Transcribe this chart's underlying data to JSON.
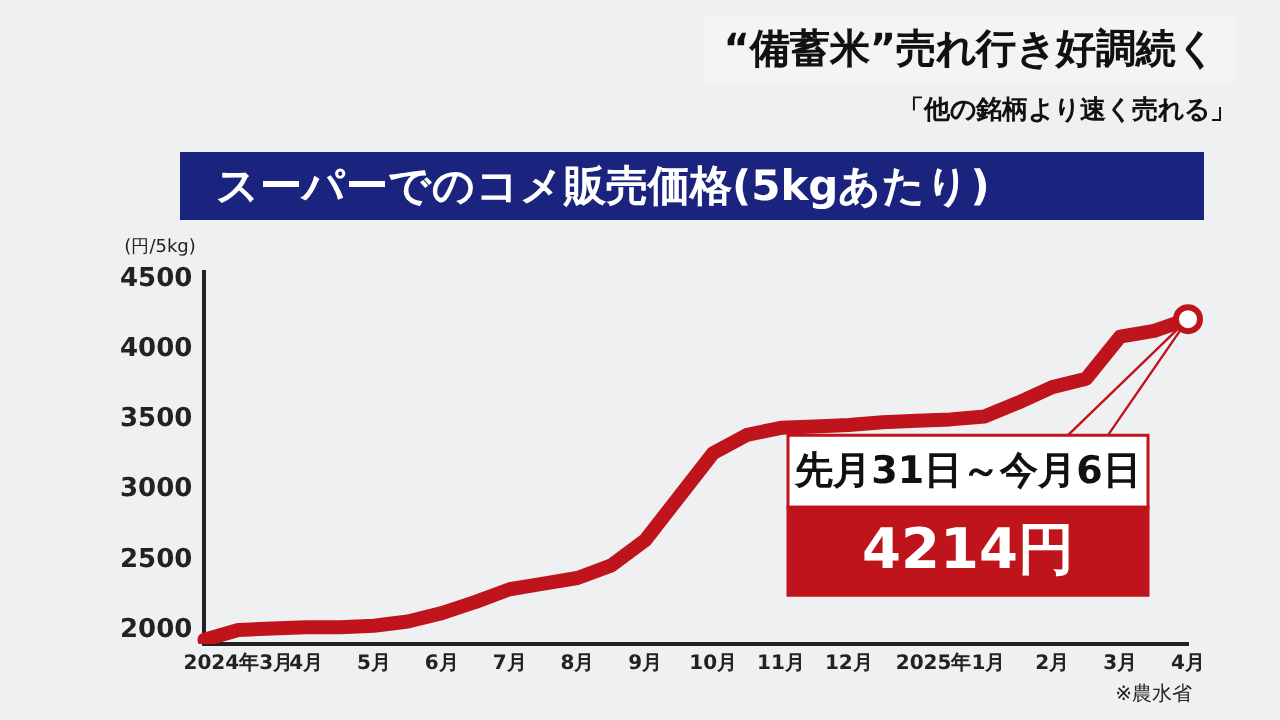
{
  "chart_data": {
    "type": "line",
    "title": "スーパーでのコメ販売価格(5kgあたり)",
    "ylabel": "(円/5kg)",
    "categories": [
      null,
      "2024年3月",
      null,
      "4月",
      null,
      "5月",
      null,
      "6月",
      null,
      "7月",
      null,
      "8月",
      null,
      "9月",
      null,
      "10月",
      null,
      "11月",
      null,
      "12月",
      null,
      null,
      "2025年1月",
      null,
      null,
      "2月",
      null,
      "3月",
      null,
      "4月"
    ],
    "series": [
      {
        "color": "#c0141c",
        "values": [
          1930,
          2000,
          2010,
          2020,
          2020,
          2030,
          2060,
          2120,
          2200,
          2290,
          2330,
          2370,
          2460,
          2640,
          2950,
          3260,
          3390,
          3440,
          3450,
          3460,
          3480,
          3490,
          3500,
          3520,
          3620,
          3730,
          3790,
          4090,
          4130,
          4214
        ]
      }
    ],
    "ylim": [
      1900,
      4550
    ],
    "yticks": [
      2000,
      2500,
      3000,
      3500,
      4000,
      4500
    ],
    "grid": false,
    "legend": false,
    "marker": "none",
    "line_style": "solid",
    "annotations": [
      "“備蓄米”売れ行き好調続く",
      "「他の銘柄より速く売れる」",
      "※農水省",
      "先月31日～今月6日",
      "4214円"
    ]
  }
}
